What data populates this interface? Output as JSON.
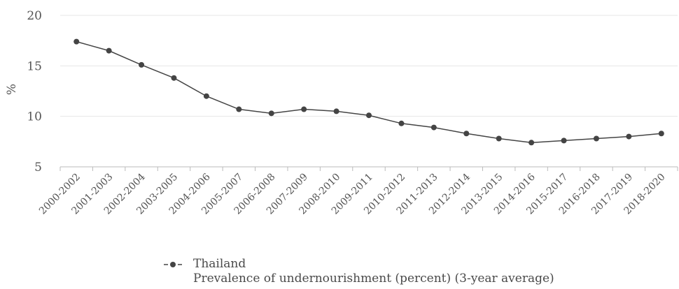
{
  "chart_data": {
    "type": "line",
    "ylabel": "%",
    "ylim": [
      5,
      20
    ],
    "yticks": [
      5,
      10,
      15,
      20
    ],
    "grid": "horizontal",
    "legend_position": "bottom",
    "categories": [
      "2000-2002",
      "2001-2003",
      "2002-2004",
      "2003-2005",
      "2004-2006",
      "2005-2007",
      "2006-2008",
      "2007-2009",
      "2008-2010",
      "2009-2011",
      "2010-2012",
      "2011-2013",
      "2012-2014",
      "2013-2015",
      "2014-2016",
      "2015-2017",
      "2016-2018",
      "2017-2019",
      "2018-2020"
    ],
    "series": [
      {
        "name": "Thailand",
        "color": "#444444",
        "values": [
          17.4,
          16.5,
          15.1,
          13.8,
          12.0,
          10.7,
          10.3,
          10.7,
          10.5,
          10.1,
          9.3,
          8.9,
          8.3,
          7.8,
          7.4,
          7.6,
          7.8,
          8.0,
          8.3
        ]
      }
    ]
  },
  "legend": {
    "series_name": "Thailand",
    "subtitle": "Prevalence of undernourishment (percent) (3-year average)"
  }
}
